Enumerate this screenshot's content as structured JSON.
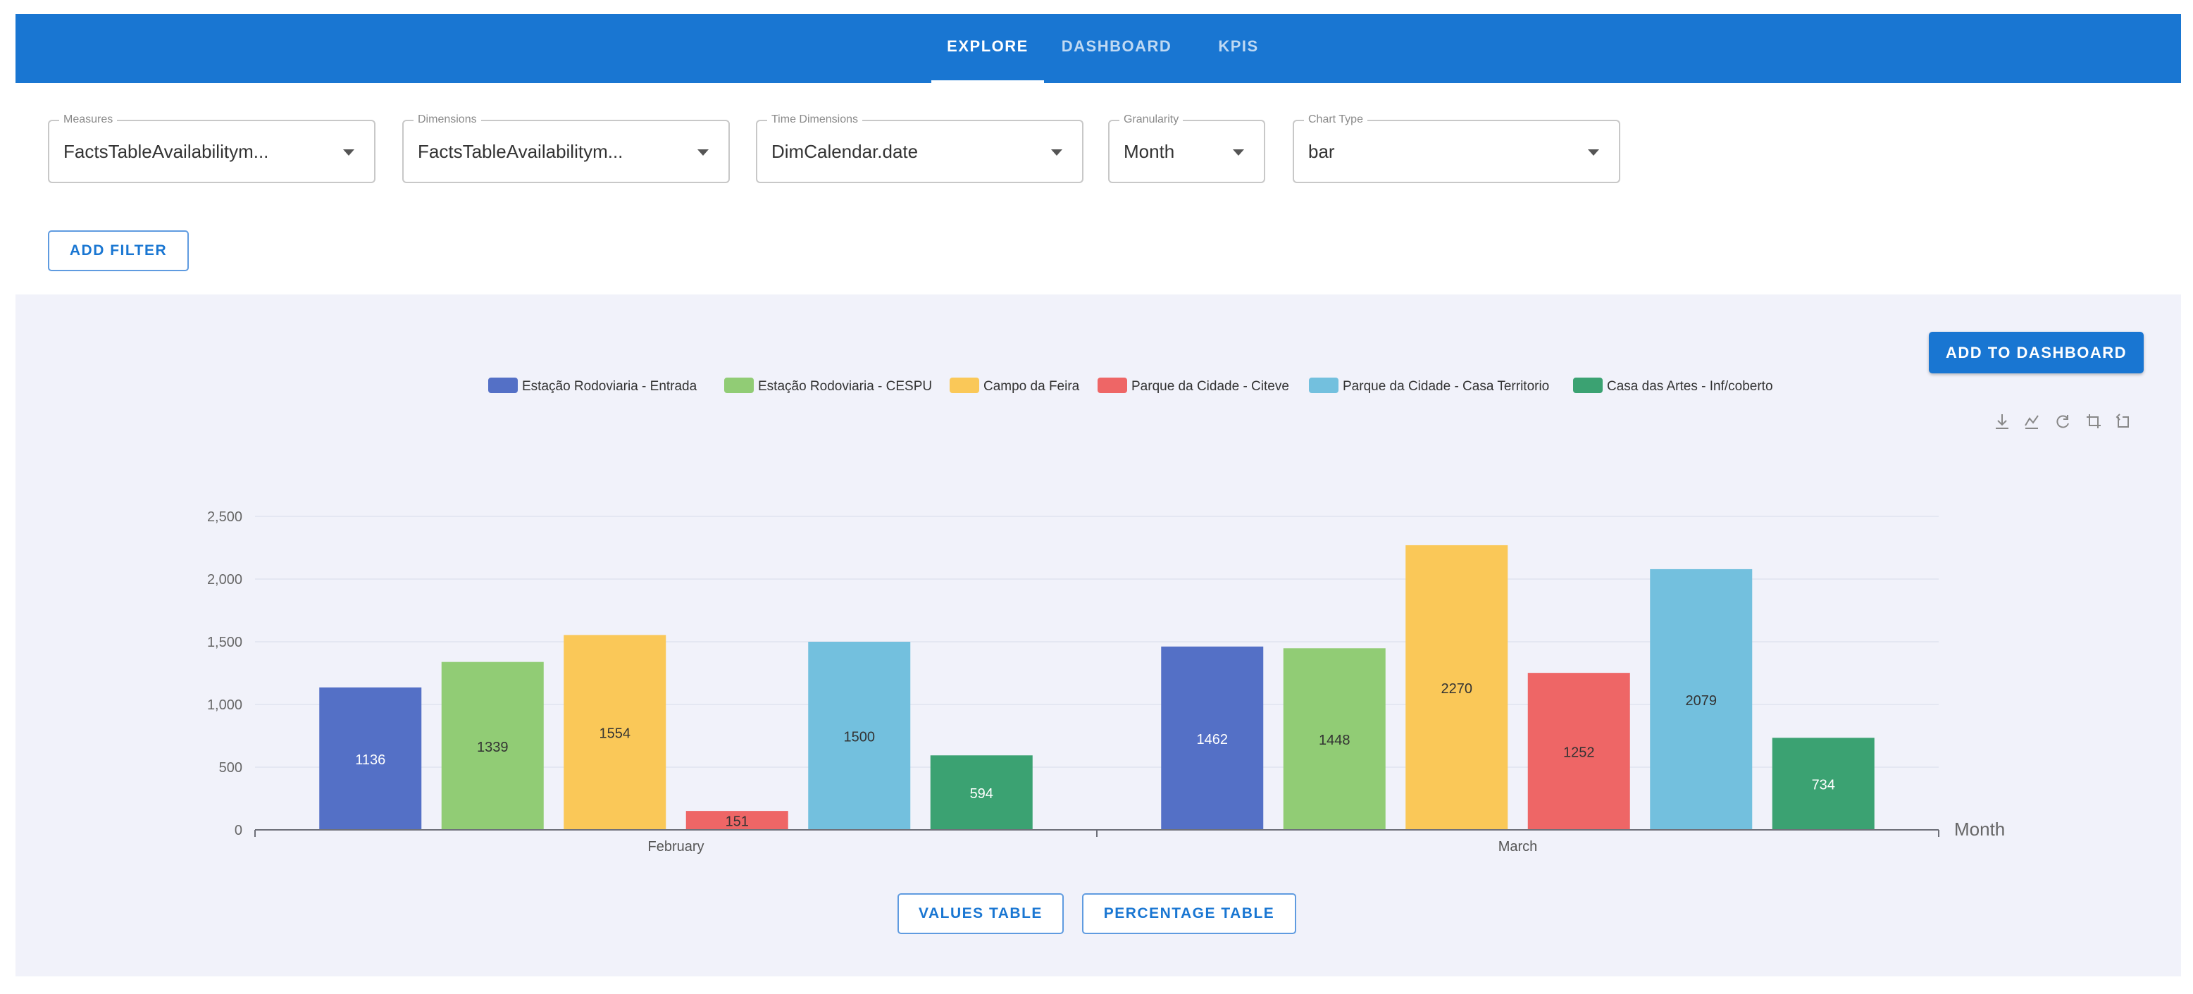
{
  "nav": {
    "tabs": [
      {
        "label": "EXPLORE",
        "active": true
      },
      {
        "label": "DASHBOARD",
        "active": false
      },
      {
        "label": "KPIS",
        "active": false
      }
    ]
  },
  "controls": {
    "measures": {
      "label": "Measures",
      "value": "FactsTableAvailabilitym..."
    },
    "dimensions": {
      "label": "Dimensions",
      "value": "FactsTableAvailabilitym..."
    },
    "time_dimensions": {
      "label": "Time Dimensions",
      "value": "DimCalendar.date"
    },
    "granularity": {
      "label": "Granularity",
      "value": "Month"
    },
    "chart_type": {
      "label": "Chart Type",
      "value": "bar"
    },
    "add_filter_label": "ADD FILTER"
  },
  "chart_panel": {
    "add_to_dashboard_label": "ADD TO DASHBOARD",
    "values_table_label": "VALUES TABLE",
    "percentage_table_label": "PERCENTAGE TABLE",
    "toolbox_icons": [
      "download-icon",
      "line-chart-icon",
      "restore-icon",
      "zoom-icon",
      "zoom-reset-icon"
    ]
  },
  "chart_data": {
    "type": "bar",
    "categories": [
      "February",
      "March"
    ],
    "xlabel": "Month",
    "ylabel": "",
    "ylim": [
      0,
      2500
    ],
    "yticks": [
      "0",
      "500",
      "1,000",
      "1,500",
      "2,000",
      "2,500"
    ],
    "grid": true,
    "legend_position": "top",
    "series": [
      {
        "name": "Estação Rodoviaria - Entrada",
        "color": "#5470c6",
        "values": [
          1136,
          1462
        ]
      },
      {
        "name": "Estação Rodoviaria - CESPU",
        "color": "#91cc75",
        "values": [
          1339,
          1448
        ]
      },
      {
        "name": "Campo da Feira",
        "color": "#fac858",
        "values": [
          1554,
          2270
        ]
      },
      {
        "name": "Parque da Cidade - Citeve",
        "color": "#ee6666",
        "values": [
          151,
          1252
        ]
      },
      {
        "name": "Parque da Cidade - Casa Territorio",
        "color": "#73c0de",
        "values": [
          1500,
          2079
        ]
      },
      {
        "name": "Casa das Artes -  Inf/coberto",
        "color": "#3ba272",
        "values": [
          594,
          734
        ]
      }
    ]
  }
}
